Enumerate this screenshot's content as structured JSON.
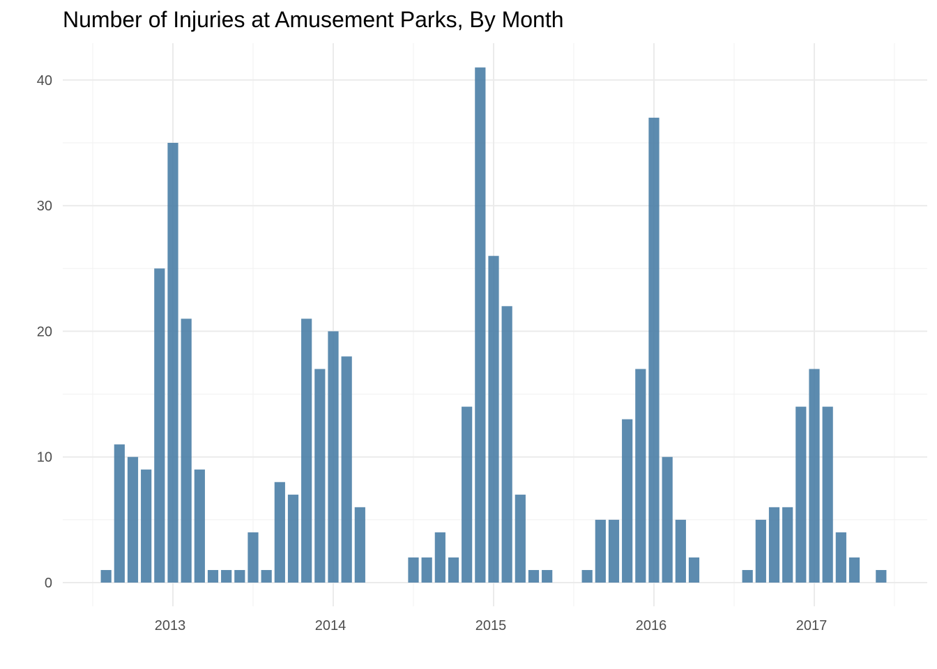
{
  "chart_data": {
    "type": "bar",
    "title": "Number of Injuries at Amusement Parks, By Month",
    "xlabel": "",
    "ylabel": "",
    "x_tick_labels": [
      "2013",
      "2014",
      "2015",
      "2016",
      "2017"
    ],
    "y_tick_labels": [
      "0",
      "10",
      "20",
      "30",
      "40"
    ],
    "ylim": [
      0,
      42.5
    ],
    "grid": true,
    "bar_color": "#4a7ea6",
    "x": [
      "2012-08",
      "2012-09",
      "2012-10",
      "2012-11",
      "2012-12",
      "2013-01",
      "2013-02",
      "2013-03",
      "2013-04",
      "2013-05",
      "2013-06",
      "2013-07",
      "2013-08",
      "2013-09",
      "2013-10",
      "2013-11",
      "2013-12",
      "2014-01",
      "2014-02",
      "2014-03",
      "2014-04",
      "2014-05",
      "2014-06",
      "2014-07",
      "2014-08",
      "2014-09",
      "2014-10",
      "2014-11",
      "2014-12",
      "2015-01",
      "2015-02",
      "2015-03",
      "2015-04",
      "2015-05",
      "2015-06",
      "2015-07",
      "2015-08",
      "2015-09",
      "2015-10",
      "2015-11",
      "2015-12",
      "2016-01",
      "2016-02",
      "2016-03",
      "2016-04",
      "2016-05",
      "2016-06",
      "2016-07",
      "2016-08",
      "2016-09",
      "2016-10",
      "2016-11",
      "2016-12",
      "2017-01",
      "2017-02",
      "2017-03",
      "2017-04",
      "2017-05",
      "2017-06",
      "2017-07"
    ],
    "values": [
      1,
      11,
      10,
      9,
      25,
      35,
      21,
      9,
      1,
      1,
      1,
      4,
      1,
      8,
      7,
      21,
      17,
      20,
      18,
      6,
      0,
      0,
      0,
      2,
      2,
      4,
      2,
      14,
      41,
      26,
      22,
      7,
      1,
      1,
      0,
      0,
      1,
      5,
      5,
      13,
      17,
      37,
      10,
      5,
      2,
      0,
      0,
      0,
      1,
      5,
      6,
      6,
      14,
      17,
      14,
      4,
      2,
      0,
      1,
      0
    ]
  }
}
